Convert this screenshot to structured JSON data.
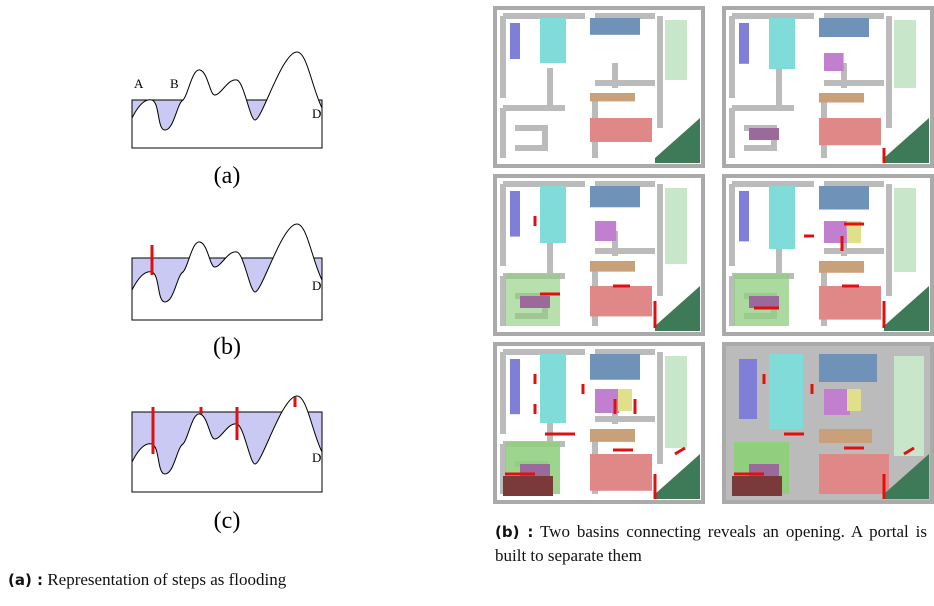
{
  "left_panel": {
    "diagrams": [
      {
        "label": "(a)",
        "points": [
          "A",
          "B",
          "D"
        ]
      },
      {
        "label": "(b)",
        "points": [
          "D"
        ]
      },
      {
        "label": "(c)",
        "points": [
          "D"
        ]
      }
    ],
    "caption": {
      "tag": "(a) :",
      "text": "Representation of steps as flooding"
    }
  },
  "right_panel": {
    "caption": {
      "tag": "(b) :",
      "text": "Two basins connecting reveals an opening. A portal is built to separate them"
    }
  }
}
